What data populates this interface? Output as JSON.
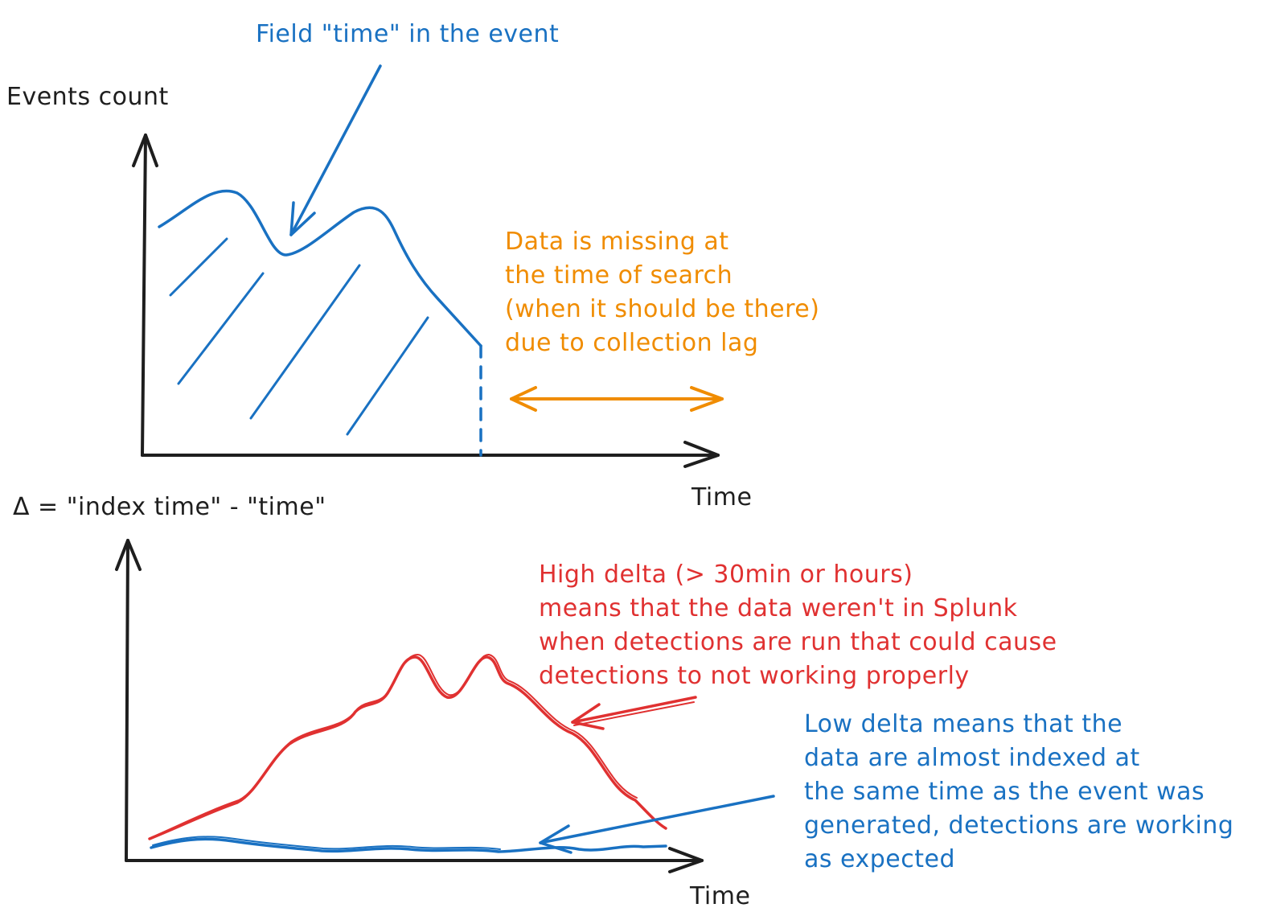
{
  "colors": {
    "ink": "#1e1e1e",
    "blue": "#1971c2",
    "orange": "#f08c00",
    "red": "#e03131"
  },
  "top_chart": {
    "y_axis_label": "Events count",
    "x_axis_label": "Time",
    "curve_annotation": "Field \"time\" in the event",
    "lag_note": [
      "Data is missing at",
      "the time of search",
      "(when it should be there)",
      "due to collection lag"
    ]
  },
  "bottom_chart": {
    "y_axis_label": "Δ = \"index time\" - \"time\"",
    "x_axis_label": "Time",
    "high_delta_note": [
      "High delta (> 30min or hours)",
      "means that the data weren't in Splunk",
      "when detections are run that could cause",
      "detections to not working properly"
    ],
    "low_delta_note": [
      "Low delta means that the",
      "data are almost indexed at",
      "the same time as the event was",
      "generated, detections are working",
      "as expected"
    ]
  }
}
